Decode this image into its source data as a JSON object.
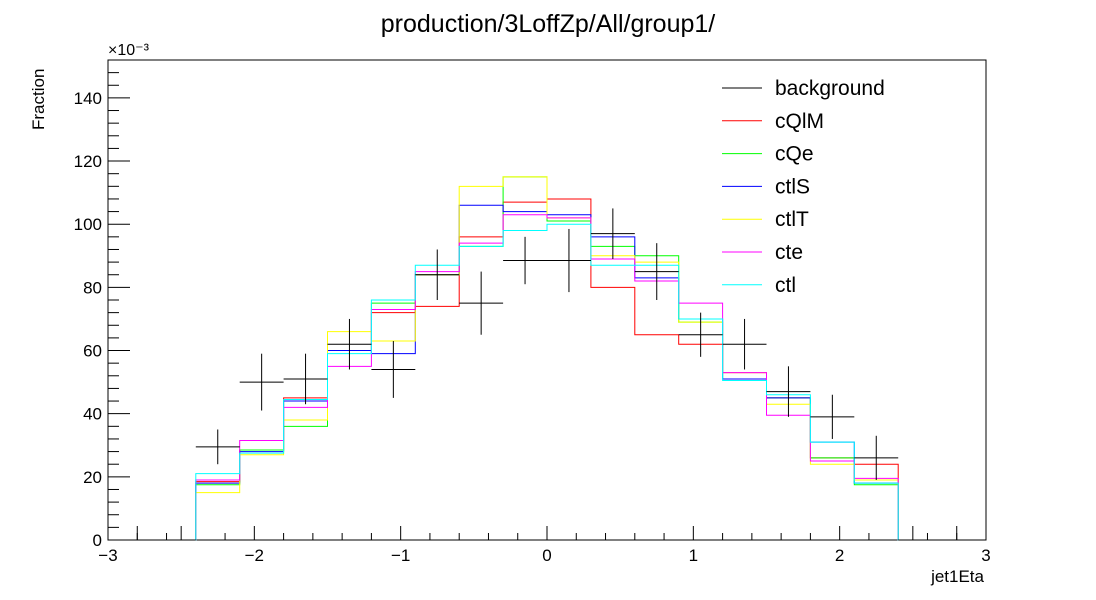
{
  "chart_data": {
    "type": "histogram",
    "title": "production/3LoffZp/All/group1/",
    "xlabel": "jet1Eta",
    "ylabel": "Fraction",
    "y_exponent_label": "×10⁻³",
    "xlim": [
      -3,
      3
    ],
    "ylim": [
      0,
      152
    ],
    "x_ticks": [
      -3,
      -2,
      -1,
      0,
      1,
      2,
      3
    ],
    "x_tick_labels": [
      "−3",
      "−2",
      "−1",
      "0",
      "1",
      "2",
      "3"
    ],
    "y_ticks": [
      0,
      20,
      40,
      60,
      80,
      100,
      120,
      140
    ],
    "y_tick_labels": [
      "0",
      "20",
      "40",
      "60",
      "80",
      "100",
      "120",
      "140"
    ],
    "bin_edges": [
      -3.0,
      -2.6,
      -2.4,
      -2.1,
      -1.8,
      -1.5,
      -1.2,
      -0.9,
      -0.6,
      -0.3,
      0.0,
      0.3,
      0.6,
      0.9,
      1.2,
      1.5,
      1.8,
      2.1,
      2.4,
      2.6,
      3.0
    ],
    "background": {
      "name": "background",
      "color": "#000000",
      "values": [
        0,
        0,
        29.5,
        50,
        51,
        62,
        54,
        84,
        75,
        88.5,
        88.5,
        97,
        85,
        65,
        62,
        47,
        39,
        26,
        0,
        0
      ],
      "errors": [
        0,
        0,
        5.5,
        9,
        8,
        8,
        9,
        8,
        10,
        7.5,
        10,
        8,
        9,
        7,
        8,
        8,
        7,
        7,
        0,
        0
      ]
    },
    "series": [
      {
        "name": "cQlM",
        "color": "#ff0000",
        "values": [
          0,
          0,
          18.5,
          28.5,
          45,
          60,
          72,
          74,
          96,
          107,
          108,
          80,
          65,
          62,
          53,
          45,
          26,
          24,
          0,
          0
        ]
      },
      {
        "name": "cQe",
        "color": "#00ff00",
        "values": [
          0,
          0,
          17.5,
          28.5,
          36,
          60,
          75,
          84,
          93,
          115,
          101,
          93,
          90,
          69,
          51,
          45,
          26,
          17.5,
          0,
          0
        ]
      },
      {
        "name": "ctlS",
        "color": "#0000ff",
        "values": [
          0,
          0,
          18,
          28,
          44,
          60,
          59,
          84,
          106,
          104,
          103,
          96,
          83,
          70,
          51,
          45,
          31,
          18,
          0,
          0
        ]
      },
      {
        "name": "ctlT",
        "color": "#ffff00",
        "values": [
          0,
          0,
          15,
          27,
          38,
          66,
          63,
          84,
          112,
          115,
          102,
          90,
          88,
          69,
          53,
          43,
          24,
          19,
          0,
          0
        ]
      },
      {
        "name": "cte",
        "color": "#ff00ff",
        "values": [
          0,
          0,
          19,
          31.5,
          42,
          55,
          73,
          85,
          94,
          103,
          102,
          89,
          82,
          75,
          53,
          39.5,
          25,
          19.5,
          0,
          0
        ]
      },
      {
        "name": "ctl",
        "color": "#00ffff",
        "values": [
          0,
          0,
          21,
          27.5,
          44.5,
          59,
          76,
          87,
          93,
          98,
          100,
          87,
          87,
          70,
          50.5,
          46,
          31,
          18,
          0,
          0
        ]
      }
    ],
    "legend": [
      "background",
      "cQlM",
      "cQe",
      "ctlS",
      "ctlT",
      "cte",
      "ctl"
    ],
    "legend_position": "top-right",
    "grid": false
  }
}
